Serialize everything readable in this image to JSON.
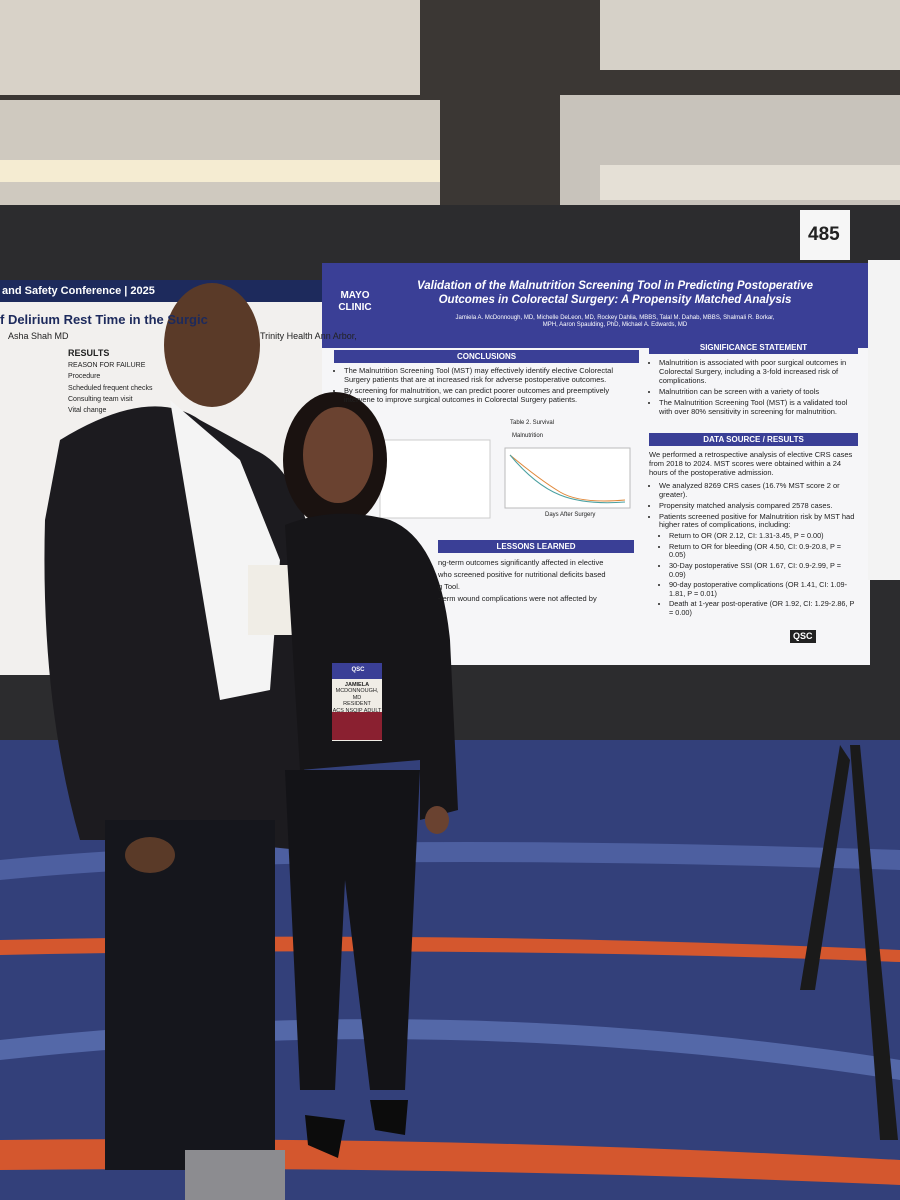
{
  "poster_number": "485",
  "main_poster": {
    "logo": "MAYO CLINIC",
    "title": "Validation of the Malnutrition Screening Tool in Predicting Postoperative Outcomes in Colorectal Surgery:  A Propensity Matched Analysis",
    "authors": "Jamiela A. McDonnough, MD, Michelle DeLeon, MD, Rockey Dahlia, MBBS, Talal M. Dahab, MBBS, Shalmali R. Borkar, MPH, Aaron Spaulding, PhD, Michael A. Edwards, MD",
    "conclusions": {
      "heading": "CONCLUSIONS",
      "items": [
        "The Malnutrition Screening Tool (MST) may effectively identify elective Colorectal Surgery patients that are at increased risk for adverse postoperative outcomes.",
        "By screening for malnutrition, we can predict poorer outcomes and preemptively intervene to improve surgical outcomes in Colorectal Surgery patients."
      ]
    },
    "chart": {
      "title": "Table 2. Survival",
      "legend": "Malnutrition",
      "x_label": "Days After Surgery"
    },
    "lessons": {
      "heading": "LESSONS LEARNED",
      "items": [
        "ng-term outcomes significantly affected in elective",
        "who screened positive for nutritional deficits based",
        "g Tool.",
        "-term wound complications were not affected by"
      ]
    },
    "significance": {
      "heading": "SIGNIFICANCE STATEMENT",
      "items": [
        "Malnutrition is associated with poor surgical outcomes in Colorectal Surgery, including a 3-fold increased risk of complications.",
        "Malnutrition can be screen with a variety of tools",
        "The Malnutrition Screening Tool (MST) is a validated tool with over 80% sensitivity in screening for malnutrition."
      ]
    },
    "results": {
      "heading": "DATA SOURCE / RESULTS",
      "intro": "We performed a retrospective analysis of elective CRS cases from 2018 to 2024. MST scores were obtained within a 24 hours of the postoperative admission.",
      "items": [
        "We analyzed 8269 CRS cases (16.7% MST score 2 or greater).",
        "Propensity matched analysis compared 2578 cases.",
        "Patients screened positive for Malnutrition risk by MST had higher rates of complications, including:"
      ],
      "sub_items": [
        "Return to OR (OR 2.12, CI: 1.31-3.45, P = 0.00)",
        "Return to OR for bleeding (OR 4.50, CI: 0.9-20.8, P = 0.05)",
        "30-Day postoperative SSI (OR 1.67, CI: 0.9-2.99, P = 0.09)",
        "90-day postoperative complications (OR 1.41, CI: 1.09-1.81, P = 0.01)",
        "Death at 1-year post-operative (OR 1.92, CI: 1.29-2.86, P = 0.00)"
      ]
    },
    "footer_logo": "QSC"
  },
  "left_poster": {
    "banner": "and Safety Conference | 2025",
    "title": "f Delirium Rest Time in the Surgic",
    "author": "Asha Shah MD",
    "affiliation": "Trinity Health Ann Arbor,",
    "heading": "RESULTS",
    "table": [
      "REASON FOR FAILURE",
      "Procedure",
      "Scheduled frequent checks",
      "Consulting team visit",
      "Vital change"
    ]
  },
  "badge": {
    "event": "QSC",
    "first_name": "JAMIELA",
    "last_name": "MCDONNOUGH, MD",
    "role": "RESIDENT",
    "program": "ACS NSQIP ADULT"
  }
}
